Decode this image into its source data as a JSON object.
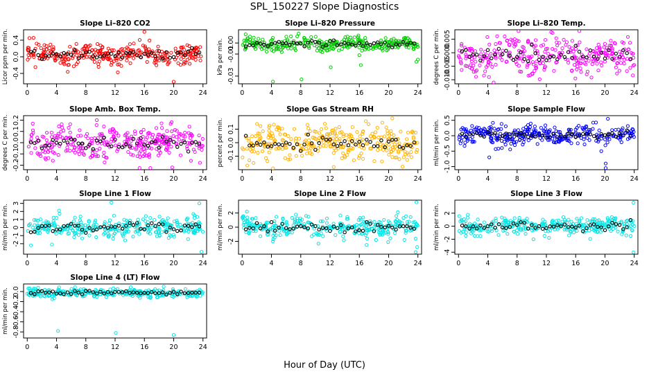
{
  "figure": {
    "title": "SPL_150227  Slope Diagnostics",
    "xlabel": "Hour of Day (UTC)"
  },
  "chart_data": [
    {
      "type": "scatter",
      "title": "Slope Li–820 CO2",
      "ylabel": "Licor ppm per min.",
      "color": "#ff0000",
      "xlim": [
        -0.5,
        24.5
      ],
      "ylim": [
        -0.65,
        0.65
      ],
      "yticks": [
        -0.4,
        0.0,
        0.4
      ],
      "ytick_labels": [
        "-0.4",
        "0.0",
        "0.4"
      ],
      "xticks": [
        0,
        4,
        8,
        12,
        16,
        20,
        24
      ],
      "base": 0.05,
      "noise": 0.13,
      "spread": 0.18,
      "outliers": [
        [
          16,
          0.6
        ],
        [
          20,
          -0.6
        ],
        [
          0.3,
          0.45
        ]
      ]
    },
    {
      "type": "scatter",
      "title": "Slope Li–820 Pressure",
      "ylabel": "kPa per min.",
      "color": "#00cc00",
      "xlim": [
        -0.5,
        24.5
      ],
      "ylim": [
        -0.037,
        0.012
      ],
      "yticks": [
        -0.03,
        -0.01,
        0.0
      ],
      "ytick_labels": [
        "-0.03",
        "-0.01",
        "0.00"
      ],
      "xticks": [
        0,
        4,
        8,
        12,
        16,
        20,
        24
      ],
      "base": -0.001,
      "noise": 0.003,
      "spread": 0.006,
      "outliers": [
        [
          4.2,
          -0.035
        ],
        [
          8.1,
          -0.033
        ],
        [
          12.1,
          -0.022
        ],
        [
          16.2,
          -0.02
        ],
        [
          23.8,
          -0.017
        ],
        [
          16,
          -0.011
        ],
        [
          24,
          -0.015
        ]
      ]
    },
    {
      "type": "scatter",
      "title": "Slope Li–820 Temp.",
      "ylabel": "degrees C per min.",
      "color": "#ff00ff",
      "xlim": [
        -0.5,
        24.5
      ],
      "ylim": [
        -0.0115,
        0.0085
      ],
      "yticks": [
        -0.01,
        -0.005,
        0.0,
        0.005
      ],
      "ytick_labels": [
        "-0.010",
        "-0.005",
        "0.000",
        "0.005"
      ],
      "xticks": [
        0,
        4,
        8,
        12,
        16,
        20,
        24
      ],
      "base": -0.001,
      "noise": 0.0035,
      "spread": 0.006,
      "outliers": [
        [
          16.5,
          0.008
        ],
        [
          4.8,
          -0.011
        ],
        [
          8.2,
          0.008
        ]
      ]
    },
    {
      "type": "scatter",
      "title": "Slope Amb. Box Temp.",
      "ylabel": "degrees C per min.",
      "color": "#ff00ff",
      "xlim": [
        -0.5,
        24.5
      ],
      "ylim": [
        -0.24,
        0.24
      ],
      "yticks": [
        -0.2,
        -0.1,
        0.0,
        0.1,
        0.2
      ],
      "ytick_labels": [
        "-0.2",
        "-0.1",
        "0.0",
        "0.1",
        "0.2"
      ],
      "xticks": [
        0,
        4,
        8,
        12,
        16,
        20,
        24
      ],
      "base": 0.0,
      "noise": 0.065,
      "spread": 0.12,
      "outliers": [
        [
          19.8,
          -0.22
        ],
        [
          3.5,
          -0.16
        ],
        [
          9.5,
          0.2
        ]
      ]
    },
    {
      "type": "scatter",
      "title": "Slope Gas Stream RH",
      "ylabel": "percent per min.",
      "color": "#ffb300",
      "xlim": [
        -0.5,
        24.5
      ],
      "ylim": [
        -0.2,
        0.2
      ],
      "yticks": [
        -0.1,
        0.0,
        0.1
      ],
      "ytick_labels": [
        "-0.1",
        "0.0",
        "0.1"
      ],
      "xticks": [
        0,
        4,
        8,
        12,
        16,
        20,
        24
      ],
      "base": 0.0,
      "noise": 0.06,
      "spread": 0.1,
      "outliers": [
        [
          4.2,
          -0.19
        ],
        [
          12.5,
          -0.18
        ],
        [
          20.5,
          0.18
        ]
      ]
    },
    {
      "type": "scatter",
      "title": "Slope Sample Flow",
      "ylabel": "ml/min per min.",
      "color": "#0000ff",
      "xlim": [
        -0.5,
        24.5
      ],
      "ylim": [
        -1.1,
        0.65
      ],
      "yticks": [
        -1.0,
        -0.5,
        0.0,
        0.5
      ],
      "ytick_labels": [
        "-1.0",
        "-0.5",
        "0.0",
        "0.5"
      ],
      "xticks": [
        0,
        4,
        8,
        12,
        16,
        20,
        24
      ],
      "base": 0.02,
      "noise": 0.14,
      "spread": 0.25,
      "outliers": [
        [
          20.1,
          -1.05
        ],
        [
          20.1,
          -0.9
        ],
        [
          20.4,
          0.55
        ],
        [
          4.2,
          -0.7
        ],
        [
          19.5,
          -0.5
        ]
      ]
    },
    {
      "type": "scatter",
      "title": "Slope Line 1 Flow",
      "ylabel": "ml/min per min.",
      "color": "#00e5e5",
      "xlim": [
        -0.5,
        24.5
      ],
      "ylim": [
        -3.3,
        3.4
      ],
      "yticks": [
        -2,
        -1,
        0,
        1,
        2,
        3
      ],
      "ytick_labels": [
        "-2",
        "-1",
        "0",
        "1",
        "2",
        "3"
      ],
      "xticks": [
        0,
        4,
        8,
        12,
        16,
        20,
        24
      ],
      "base": 0.0,
      "noise": 0.6,
      "spread": 0.15,
      "outliers": [
        [
          11.5,
          3.1
        ],
        [
          23.5,
          3.0
        ],
        [
          0.5,
          -2.2
        ],
        [
          23.8,
          -3.0
        ]
      ]
    },
    {
      "type": "scatter",
      "title": "Slope Line 2 Flow",
      "ylabel": "ml/min per min.",
      "color": "#00e5e5",
      "xlim": [
        -0.5,
        24.5
      ],
      "ylim": [
        -3.8,
        3.8
      ],
      "yticks": [
        -2,
        0,
        2
      ],
      "ytick_labels": [
        "-2",
        "0",
        "2"
      ],
      "xticks": [
        0,
        4,
        8,
        12,
        16,
        20,
        24
      ],
      "base": 0.0,
      "noise": 0.75,
      "spread": 1.3,
      "outliers": [
        [
          23.8,
          3.5
        ],
        [
          23.7,
          -3.5
        ],
        [
          23.9,
          -2.8
        ],
        [
          17.0,
          -2.5
        ],
        [
          4.2,
          -2.0
        ]
      ]
    },
    {
      "type": "scatter",
      "title": "Slope Line 3 Flow",
      "ylabel": "ml/min per min.",
      "color": "#00e5e5",
      "xlim": [
        -0.5,
        24.5
      ],
      "ylim": [
        -4.3,
        4.0
      ],
      "yticks": [
        -4,
        -2,
        0,
        2
      ],
      "ytick_labels": [
        "-4",
        "-2",
        "0",
        "2"
      ],
      "xticks": [
        0,
        4,
        8,
        12,
        16,
        20,
        24
      ],
      "base": 0.0,
      "noise": 0.7,
      "spread": 0.9,
      "outliers": [
        [
          23.9,
          3.6
        ],
        [
          23.9,
          -4.0
        ],
        [
          23.5,
          -1.5
        ]
      ]
    },
    {
      "type": "scatter",
      "title": "Slope Line 4 (LT) Flow",
      "ylabel": "ml/min per min.",
      "color": "#00e5e5",
      "xlim": [
        -0.5,
        24.5
      ],
      "ylim": [
        -0.92,
        0.15
      ],
      "yticks": [
        -0.8,
        -0.6,
        -0.4,
        -0.2,
        0.0
      ],
      "ytick_labels": [
        "-0.8",
        "-0.6",
        "-0.4",
        "-0.2",
        "0.0"
      ],
      "xticks": [
        0,
        4,
        8,
        12,
        16,
        20,
        24
      ],
      "base": -0.02,
      "noise": 0.045,
      "spread": 0.05,
      "outliers": [
        [
          4.2,
          -0.78
        ],
        [
          12.1,
          -0.82
        ],
        [
          20.0,
          -0.86
        ]
      ]
    }
  ]
}
